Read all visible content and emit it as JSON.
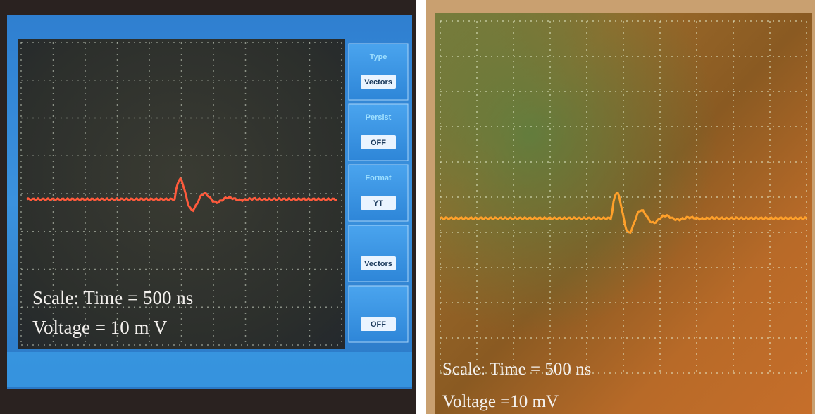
{
  "left_screen": {
    "menu": [
      {
        "label": "Type",
        "value": "Vectors"
      },
      {
        "label": "Persist",
        "value": "OFF"
      },
      {
        "label": "Format",
        "value": "YT"
      },
      {
        "value": "Vectors"
      },
      {
        "value": "OFF"
      }
    ],
    "caption": [
      "Scale: Time = 500 ns",
      "Voltage = 10 m V"
    ]
  },
  "right_screen": {
    "caption": [
      "Scale: Time = 500 ns",
      "Voltage =10 mV"
    ]
  }
}
